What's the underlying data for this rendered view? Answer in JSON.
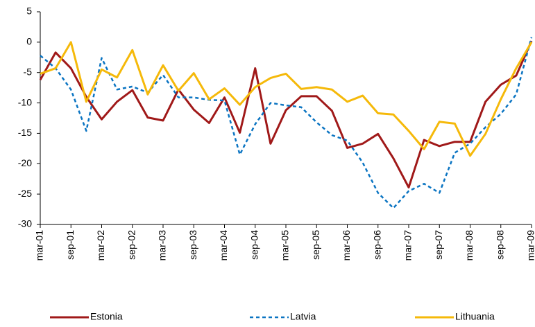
{
  "chart_data": {
    "type": "line",
    "categories": [
      "mar-01",
      null,
      "sep-01",
      null,
      "mar-02",
      null,
      "sep-02",
      null,
      "mar-03",
      null,
      "sep-03",
      null,
      "mar-04",
      null,
      "sep-04",
      null,
      "mar-05",
      null,
      "sep-05",
      null,
      "mar-06",
      null,
      "sep-06",
      null,
      "mar-07",
      null,
      "sep-07",
      null,
      "mar-08",
      null,
      "sep-08",
      null,
      "mar-09"
    ],
    "series": [
      {
        "name": "Estonia",
        "color": "#a01919",
        "dash": false,
        "values": [
          -6.2,
          -1.7,
          -4.3,
          -9,
          -12.7,
          -9.8,
          -7.9,
          -12.4,
          -12.9,
          -7.8,
          -11.1,
          -13.3,
          -9.1,
          -14.9,
          -4.3,
          -16.7,
          -11.2,
          -8.9,
          -8.9,
          -11.3,
          -17.4,
          -16.7,
          -15.1,
          -19.1,
          -23.9,
          -16.1,
          -17.1,
          -16.4,
          -16.4,
          -9.8,
          -7,
          -5.5,
          0.2
        ]
      },
      {
        "name": "Latvia",
        "color": "#0a74c2",
        "dash": true,
        "values": [
          -2.2,
          -4.3,
          -7.8,
          -14.6,
          -2.6,
          -7.8,
          -7.3,
          -8.3,
          -5.4,
          -9.1,
          -9.1,
          -9.5,
          -9.6,
          -18.5,
          -13.5,
          -10,
          -10.4,
          -10.7,
          -13.2,
          -15.3,
          -16.2,
          -19.8,
          -24.8,
          -27.3,
          -24.5,
          -23.3,
          -24.8,
          -18.2,
          -16.7,
          -14,
          -11.8,
          -8.6,
          0.8
        ]
      },
      {
        "name": "Lithuania",
        "color": "#f5b90a",
        "dash": false,
        "values": [
          -5.2,
          -4.3,
          0,
          -9.8,
          -4.5,
          -5.8,
          -1.3,
          -8.6,
          -3.8,
          -8,
          -5.1,
          -9.4,
          -7.6,
          -10.3,
          -7.4,
          -5.9,
          -5.2,
          -7.7,
          -7.4,
          -7.8,
          -9.8,
          -8.8,
          -11.7,
          -11.9,
          -14.6,
          -17.6,
          -13.1,
          -13.4,
          -18.7,
          -15.1,
          -9.4,
          -4.3,
          0
        ]
      }
    ],
    "ylim": [
      -30,
      5
    ],
    "yticks": [
      -30,
      -25,
      -20,
      -15,
      -10,
      -5,
      0,
      5
    ],
    "grid": false
  }
}
